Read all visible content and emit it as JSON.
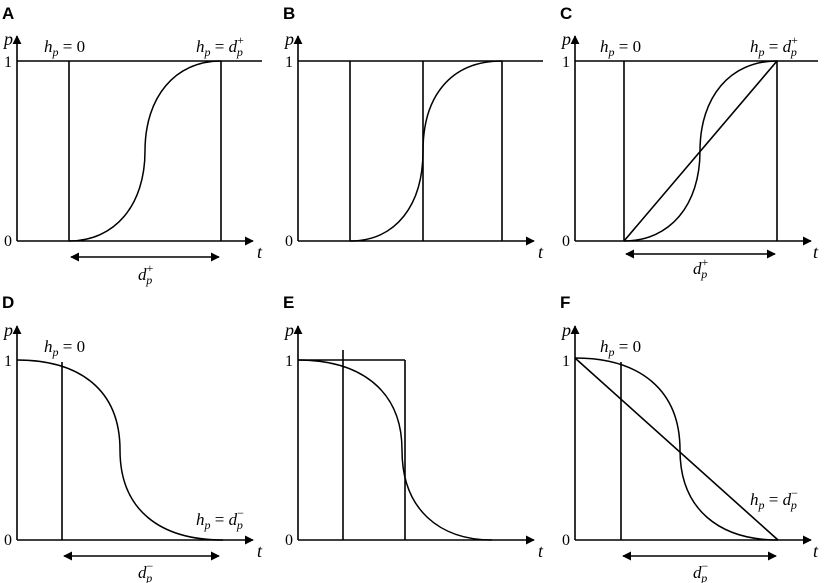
{
  "panels": [
    {
      "letter": "A",
      "y_axis_label": "p",
      "x_axis_label": "t",
      "y_tick_top": "1",
      "y_tick_bottom": "0",
      "annotations": {
        "h_left": {
          "base": "h",
          "sub": "p",
          "eq": " = ",
          "rhs": "0"
        },
        "h_right": {
          "base": "h",
          "sub": "p",
          "eq": " = ",
          "rhs_base": "d",
          "rhs_sup": "+",
          "rhs_sub": "p"
        },
        "duration": {
          "base": "d",
          "sup": "+",
          "sub": "p"
        }
      }
    },
    {
      "letter": "B",
      "y_axis_label": "p",
      "x_axis_label": "t",
      "y_tick_top": "1",
      "y_tick_bottom": "0"
    },
    {
      "letter": "C",
      "y_axis_label": "p",
      "x_axis_label": "t",
      "y_tick_top": "1",
      "y_tick_bottom": "0",
      "annotations": {
        "h_left": {
          "base": "h",
          "sub": "p",
          "eq": " = ",
          "rhs": "0"
        },
        "h_right": {
          "base": "h",
          "sub": "p",
          "eq": " = ",
          "rhs_base": "d",
          "rhs_sup": "+",
          "rhs_sub": "p"
        },
        "duration": {
          "base": "d",
          "sup": "+",
          "sub": "p"
        }
      }
    },
    {
      "letter": "D",
      "y_axis_label": "p",
      "x_axis_label": "t",
      "y_tick_top": "1",
      "y_tick_bottom": "0",
      "annotations": {
        "h_left": {
          "base": "h",
          "sub": "p",
          "eq": " = ",
          "rhs": "0"
        },
        "h_right": {
          "base": "h",
          "sub": "p",
          "eq": " = ",
          "rhs_base": "d",
          "rhs_sup": "−",
          "rhs_sub": "p"
        },
        "duration": {
          "base": "d",
          "sup": "−",
          "sub": "p"
        }
      }
    },
    {
      "letter": "E",
      "y_axis_label": "p",
      "x_axis_label": "t",
      "y_tick_top": "1",
      "y_tick_bottom": "0"
    },
    {
      "letter": "F",
      "y_axis_label": "p",
      "x_axis_label": "t",
      "y_tick_top": "1",
      "y_tick_bottom": "0",
      "annotations": {
        "h_left": {
          "base": "h",
          "sub": "p",
          "eq": " = ",
          "rhs": "0"
        },
        "h_right": {
          "base": "h",
          "sub": "p",
          "eq": " = ",
          "rhs_base": "d",
          "rhs_sup": "−",
          "rhs_sub": "p"
        },
        "duration": {
          "base": "d",
          "sup": "−",
          "sub": "p"
        }
      }
    }
  ]
}
